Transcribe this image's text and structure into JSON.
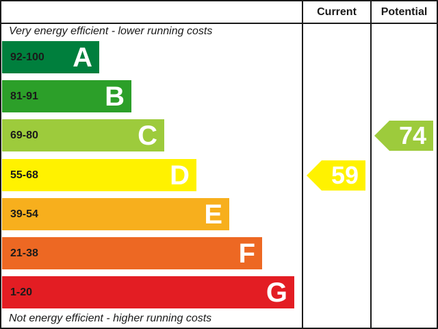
{
  "headers": {
    "current": "Current",
    "potential": "Potential"
  },
  "captions": {
    "top": "Very energy efficient - lower running costs",
    "bottom": "Not energy efficient - higher running costs"
  },
  "chart_data": {
    "type": "bar",
    "categories": [
      "A",
      "B",
      "C",
      "D",
      "E",
      "F",
      "G"
    ],
    "bands": [
      {
        "letter": "A",
        "range": "92-100",
        "min": 92,
        "max": 100,
        "color": "#007f3d"
      },
      {
        "letter": "B",
        "range": "81-91",
        "min": 81,
        "max": 91,
        "color": "#2c9f29"
      },
      {
        "letter": "C",
        "range": "69-80",
        "min": 69,
        "max": 80,
        "color": "#9dcb3c"
      },
      {
        "letter": "D",
        "range": "55-68",
        "min": 55,
        "max": 68,
        "color": "#fff200"
      },
      {
        "letter": "E",
        "range": "39-54",
        "min": 39,
        "max": 54,
        "color": "#f7af1d"
      },
      {
        "letter": "F",
        "range": "21-38",
        "min": 21,
        "max": 38,
        "color": "#ed6823"
      },
      {
        "letter": "G",
        "range": "1-20",
        "min": 1,
        "max": 20,
        "color": "#e31d23"
      }
    ],
    "current": {
      "value": 59,
      "band": "D",
      "color": "#fff200"
    },
    "potential": {
      "value": 74,
      "band": "C",
      "color": "#9dcb3c"
    }
  }
}
